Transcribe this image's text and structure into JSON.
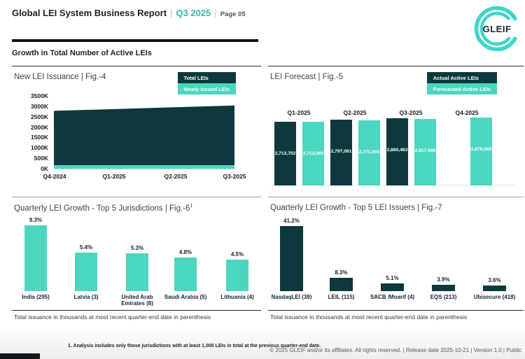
{
  "header": {
    "title": "Global LEI System Business Report",
    "divider": "|",
    "period": "Q3 2025",
    "page_label": "Page 05",
    "logo_text": "GLEIF"
  },
  "section_heading": "Growth in Total Number of Active LEIs",
  "colors": {
    "dark_teal": "#0e393c",
    "teal": "#4bd7bf",
    "accent": "#2fb8b0",
    "logo_teal": "#3fd6c6"
  },
  "chart_data": [
    {
      "id": "fig4",
      "type": "area",
      "title": "New LEI Issuance | Fig.-4",
      "legend": [
        {
          "label": "Total LEIs",
          "color": "#0e393c"
        },
        {
          "label": "Newly Issued LEIs",
          "color": "#4bd7bf"
        }
      ],
      "legend_position": "top-right",
      "x": [
        "Q4-2024",
        "Q1-2025",
        "Q2-2025",
        "Q3-2025"
      ],
      "series": [
        {
          "name": "Total LEIs",
          "values_thousands": [
            2780,
            2865,
            2950,
            3040
          ]
        },
        {
          "name": "Newly Issued LEIs",
          "values_thousands": [
            45,
            45,
            45,
            45
          ]
        }
      ],
      "y_ticks": [
        "3500K",
        "3000K",
        "2500K",
        "2000K",
        "1500K",
        "1000K",
        "500K",
        "0K"
      ],
      "ylim_thousands": [
        0,
        3500
      ],
      "grid": false
    },
    {
      "id": "fig5",
      "type": "bar",
      "title": "LEI Forecast | Fig.-5",
      "legend": [
        {
          "label": "Actual Active LEIs",
          "color": "#0e393c"
        },
        {
          "label": "Forecasted Active LEIs",
          "color": "#4bd7bf"
        }
      ],
      "legend_position": "top-right",
      "categories": [
        "Q1-2025",
        "Q2-2025",
        "Q3-2025",
        "Q4-2025"
      ],
      "series": [
        {
          "name": "Actual Active LEIs",
          "values": [
            2713702,
            2797061,
            2860463,
            null
          ],
          "labels": [
            "2,713,702",
            "2,797,061",
            "2,860,463",
            null
          ]
        },
        {
          "name": "Forecasted Active LEIs",
          "values": [
            2713000,
            2771000,
            2817000,
            2878000
          ],
          "labels": [
            "2,713,000",
            "2,771,000",
            "2,817,000",
            "2,878,000"
          ]
        }
      ]
    },
    {
      "id": "fig6",
      "type": "bar",
      "title": "Quarterly LEI Growth - Top 5 Jurisdictions | Fig.-6",
      "title_sup": "1",
      "categories": [
        "India (295)",
        "Latvia (3)",
        "United Arab Emirates (8)",
        "Saudi Arabia (5)",
        "Lithuania (4)"
      ],
      "values_pct": [
        9.3,
        5.4,
        5.3,
        4.8,
        4.5
      ],
      "value_labels": [
        "9.3%",
        "5.4%",
        "5.3%",
        "4.8%",
        "4.5%"
      ],
      "bar_color": "#4bd7bf",
      "note": "Total issuance in thousands at most recent quarter-end date in parenthesis"
    },
    {
      "id": "fig7",
      "type": "bar",
      "title": "Quarterly LEI Growth - Top 5 LEI Issuers | Fig.-7",
      "categories": [
        "NasdaqLEI (39)",
        "LEIL (115)",
        "SACB /Moarif (4)",
        "EQS (213)",
        "Ubisecure (418)"
      ],
      "values_pct": [
        41.2,
        8.3,
        5.1,
        3.9,
        3.6
      ],
      "value_labels": [
        "41.2%",
        "8.3%",
        "5.1%",
        "3.9%",
        "3.6%"
      ],
      "bar_color": "#0e393c",
      "note": "Total issuance in thousands at most recent quarter-end date in parenthesis"
    }
  ],
  "footer": {
    "footnote": "1. Analysis includes only those jurisdictions with at least 1,000 LEIs in total at the previous quarter-end date.",
    "copyright": "© 2025 GLEIF and/or its affiliates. All rights reserved. | Release date 2025-10-21 | Version 1.0 | Public"
  }
}
